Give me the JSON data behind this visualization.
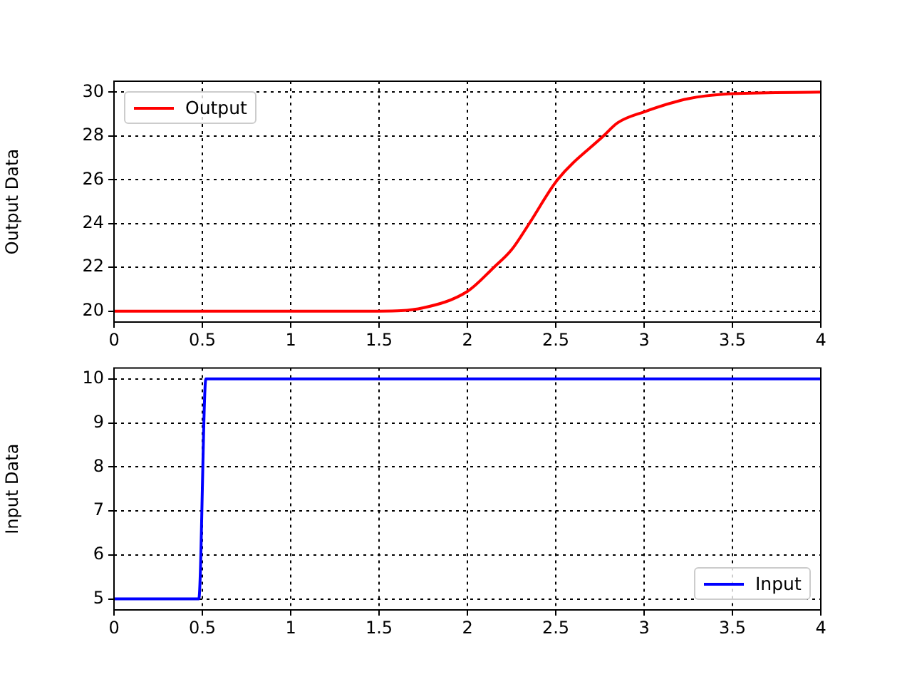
{
  "chart_data": [
    {
      "type": "line",
      "ylabel": "Output Data",
      "xlim": [
        0,
        4
      ],
      "xticks": [
        0,
        0.5,
        1,
        1.5,
        2,
        2.5,
        3,
        3.5,
        4
      ],
      "ylim": [
        19.5,
        30.5
      ],
      "yticks": [
        20,
        22,
        24,
        26,
        28,
        30
      ],
      "grid": true,
      "legend": "top left",
      "line_style": "solid",
      "marker": "none",
      "series": [
        {
          "name": "Output",
          "color": "#ff0000",
          "x": [
            0,
            0.5,
            1,
            1.5,
            1.75,
            2,
            2.15,
            2.25,
            2.35,
            2.51,
            2.77,
            2.85,
            3,
            3.25,
            3.5,
            4
          ],
          "values": [
            20,
            20,
            20,
            20,
            20.15,
            20.9,
            22,
            22.8,
            24,
            26,
            28,
            28.6,
            29.1,
            29.7,
            29.93,
            30
          ]
        }
      ]
    },
    {
      "type": "line",
      "ylabel": "Input Data",
      "xlim": [
        0,
        4
      ],
      "xticks": [
        0,
        0.5,
        1,
        1.5,
        2,
        2.5,
        3,
        3.5,
        4
      ],
      "ylim": [
        4.75,
        10.25
      ],
      "yticks": [
        5,
        6,
        7,
        8,
        9,
        10
      ],
      "grid": true,
      "legend": "bottom right",
      "line_style": "solid",
      "marker": "none",
      "series": [
        {
          "name": "Input",
          "color": "#0000ff",
          "x": [
            0,
            0.48,
            0.52,
            4
          ],
          "values": [
            5,
            5,
            10,
            10
          ]
        }
      ]
    }
  ]
}
